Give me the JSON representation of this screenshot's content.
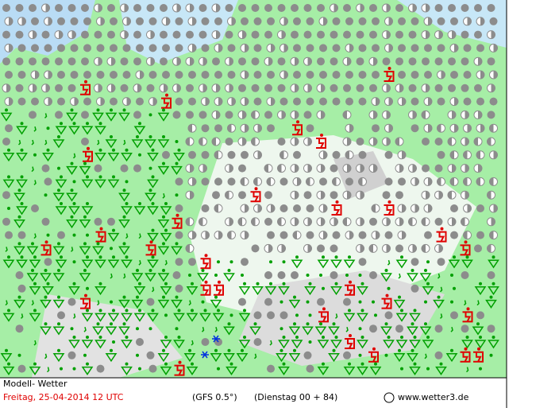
{
  "header": {
    "title": "Modell- Wetter"
  },
  "footer": {
    "date": "Freitag, 25-04-2014   12 UTC",
    "model": "(GFS 0.5°)",
    "run": "(Dienstag 00 + 84)",
    "credit": "www.wetter3.de"
  }
}
